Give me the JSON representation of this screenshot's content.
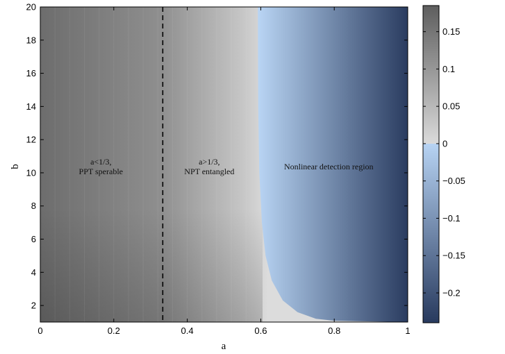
{
  "chart_data": {
    "type": "heatmap",
    "title": "",
    "xlabel": "a",
    "ylabel": "b",
    "xlim": [
      0,
      1
    ],
    "ylim": [
      1,
      20
    ],
    "x_ticks": [
      "0",
      "0.2",
      "0.4",
      "0.6",
      "0.8",
      "1"
    ],
    "x_tick_values": [
      0,
      0.2,
      0.4,
      0.6,
      0.8,
      1
    ],
    "y_ticks": [
      "2",
      "4",
      "6",
      "8",
      "10",
      "12",
      "14",
      "16",
      "18",
      "20"
    ],
    "y_tick_values": [
      2,
      4,
      6,
      8,
      10,
      12,
      14,
      16,
      18,
      20
    ],
    "colorbar": {
      "range": [
        -0.24,
        0.185
      ],
      "ticks": [
        "0.15",
        "0.1",
        "0.05",
        "0",
        "−0.05",
        "−0.1",
        "−0.15",
        "−0.2"
      ],
      "tick_values": [
        0.15,
        0.1,
        0.05,
        0,
        -0.05,
        -0.1,
        -0.15,
        -0.2
      ],
      "positive_colors": [
        "#dadada",
        "#5e5e5e"
      ],
      "negative_colors": [
        "#b7d3f3",
        "#283a5e"
      ]
    },
    "boundary_line": {
      "x": 0.3333,
      "style": "dashed"
    },
    "zero_contour": [
      [
        0.592,
        20
      ],
      [
        0.593,
        14
      ],
      [
        0.596,
        10
      ],
      [
        0.603,
        7
      ],
      [
        0.613,
        5
      ],
      [
        0.63,
        3.5
      ],
      [
        0.66,
        2.3
      ],
      [
        0.7,
        1.6
      ],
      [
        0.75,
        1.2
      ],
      [
        0.8,
        1.08
      ],
      [
        1.0,
        1.0
      ]
    ],
    "value_range": {
      "left_top": 0.16,
      "dashed_line": 0.12,
      "zero_boundary": 0,
      "right_edge": -0.24,
      "left_bottom": 0.185
    },
    "annotations": [
      {
        "lines": [
          "a<1/3,",
          "PPT sperable"
        ],
        "x": 0.165,
        "y": 10.5
      },
      {
        "lines": [
          "a>1/3,",
          "NPT entangled"
        ],
        "x": 0.46,
        "y": 10.5
      },
      {
        "lines": [
          "Nonlinear detection region"
        ],
        "x": 0.785,
        "y": 10.2
      }
    ]
  }
}
